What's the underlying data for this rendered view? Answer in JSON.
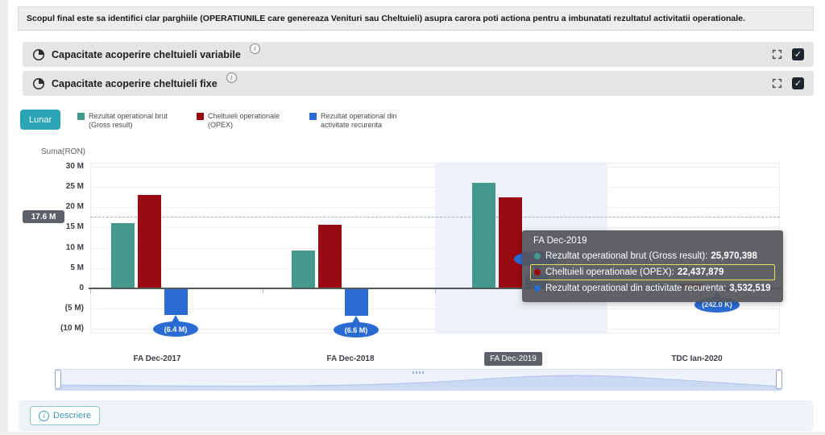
{
  "banner": {
    "text": "Scopul final este sa identifici clar parghiile (OPERATIUNILE care genereaza Venituri sau Cheltuieli) asupra carora poti actiona pentru a imbunatati rezultatul activitatii operationale."
  },
  "panels": [
    {
      "title": "Capacitate acoperire cheltuieli variabile",
      "checked": true
    },
    {
      "title": "Capacitate acoperire cheltuieli fixe",
      "checked": true
    }
  ],
  "toolbar": {
    "period_button": "Lunar"
  },
  "chart_data": {
    "type": "bar",
    "ylabel": "Suma(RON)",
    "categories": [
      "FA Dec-2017",
      "FA Dec-2018",
      "FA Dec-2019",
      "TDC Ian-2020"
    ],
    "series": [
      {
        "name": "Rezultat operational brut (Gross result)",
        "color": "#44998c",
        "values": [
          16100000,
          9300000,
          25970398,
          1000000
        ]
      },
      {
        "name": "Cheltuieli operationale (OPEX)",
        "color": "#9a0a12",
        "values": [
          23000000,
          15700000,
          22437879,
          1200000
        ]
      },
      {
        "name": "Rezultat operational din activitate recurenta",
        "color": "#2a6bd2",
        "values": [
          -6400000,
          -6600000,
          3532519,
          -242000
        ]
      }
    ],
    "yticks": [
      {
        "label": "30 M",
        "value": 30000000
      },
      {
        "label": "25 M",
        "value": 25000000
      },
      {
        "label": "20 M",
        "value": 20000000
      },
      {
        "label": "15 M",
        "value": 15000000
      },
      {
        "label": "10 M",
        "value": 10000000
      },
      {
        "label": "5 M",
        "value": 5000000
      },
      {
        "label": "0",
        "value": 0
      },
      {
        "label": "(5 M)",
        "value": -5000000
      },
      {
        "label": "(10 M)",
        "value": -10000000
      }
    ],
    "ylim": [
      -10000000,
      31000000
    ],
    "grid": true,
    "legend_position": "top",
    "reference_line": {
      "label": "17.6 M",
      "value": 17600000
    },
    "highlighted_category": "FA Dec-2019",
    "balloons": [
      {
        "category_index": 0,
        "label": "(6.4 M)",
        "position": "below"
      },
      {
        "category_index": 1,
        "label": "(6.6 M)",
        "position": "below"
      },
      {
        "category_index": 2,
        "label": null,
        "position": "above"
      },
      {
        "category_index": 3,
        "label": "(242.0 K)",
        "position": "below"
      }
    ]
  },
  "tooltip": {
    "title": "FA Dec-2019",
    "rows": [
      {
        "label": "Rezultat operational brut (Gross result)",
        "value": "25,970,398",
        "color": "#44998c",
        "highlighted": false
      },
      {
        "label": "Cheltuieli operationale (OPEX)",
        "value": "22,437,879",
        "color": "#9a0a12",
        "highlighted": true
      },
      {
        "label": "Rezultat operational din activitate recurenta",
        "value": "3,532,519",
        "color": "#2a6bd2",
        "highlighted": false
      }
    ]
  },
  "footer": {
    "describe_button": "Descriere"
  }
}
